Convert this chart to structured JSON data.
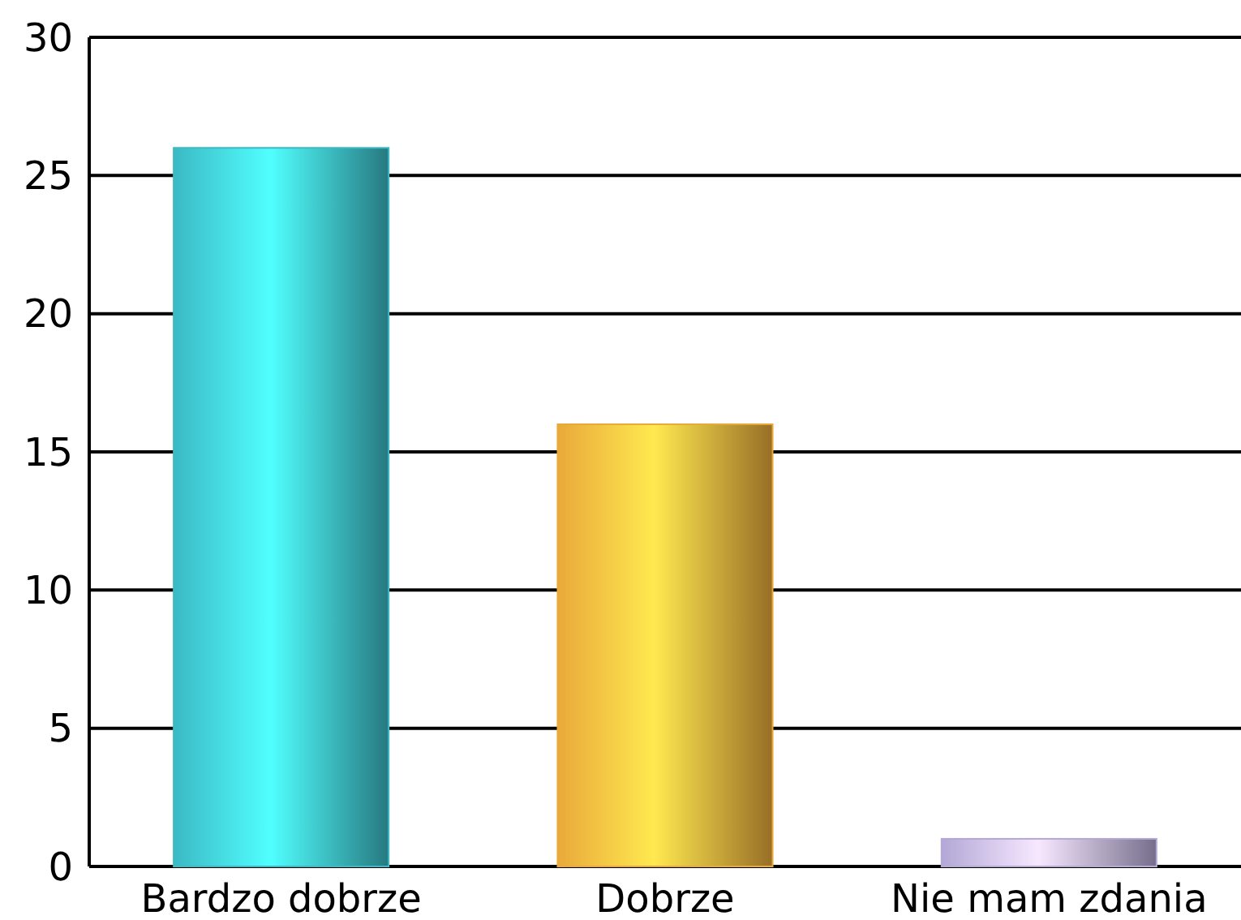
{
  "chart_data": {
    "type": "bar",
    "categories": [
      "Bardzo dobrze",
      "Dobrze",
      "Nie mam zdania"
    ],
    "values": [
      26,
      16,
      1
    ],
    "colors": [
      "#3bb9c4",
      "#e9a93a",
      "#b3a8d6"
    ],
    "ylim": [
      0,
      30
    ],
    "yticks": [
      0,
      5,
      10,
      15,
      20,
      25,
      30
    ],
    "grid": "y"
  }
}
